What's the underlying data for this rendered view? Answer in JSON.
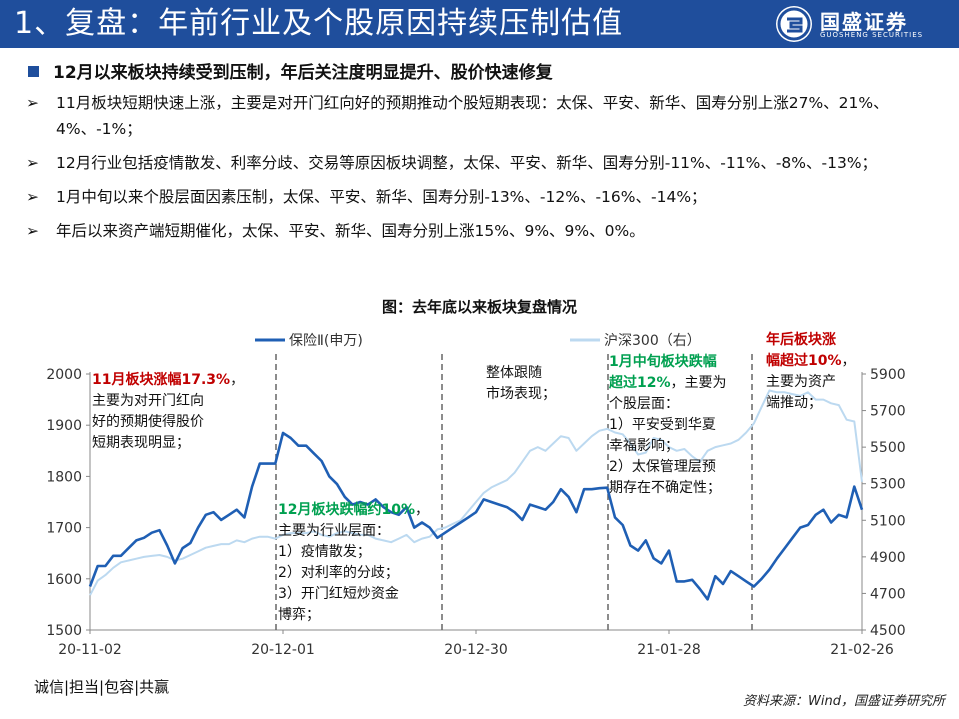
{
  "header": {
    "title": "1、复盘：年前行业及个股原因持续压制估值",
    "logo_cn": "国盛证券",
    "logo_en": "GUOSHENG SECURITIES"
  },
  "section_title": "12月以来板块持续受到压制，年后关注度明显提升、股价快速修复",
  "bullets": [
    "11月板块短期快速上涨，主要是对开门红向好的预期推动个股短期表现：太保、平安、新华、国寿分别上涨27%、21%、4%、-1%；",
    "12月行业包括疫情散发、利率分歧、交易等原因板块调整，太保、平安、新华、国寿分别-11%、-11%、-8%、-13%；",
    "1月中旬以来个股层面因素压制，太保、平安、新华、国寿分别-13%、-12%、-16%、-14%；",
    "年后以来资产端短期催化，太保、平安、新华、国寿分别上涨15%、9%、9%、0%。"
  ],
  "bullet_marker": "➢",
  "figure_title": "图：去年底以来板块复盘情况",
  "footer": {
    "slogan": "诚信|担当|包容|共赢",
    "source": "资料来源：Wind，国盛证券研究所"
  },
  "colors": {
    "header": "#1f4e9c",
    "series_left": "#1f5fb4",
    "series_right": "#bcd9f0",
    "red": "#c00000",
    "green": "#00a050"
  },
  "chart_data": {
    "type": "line",
    "x_tick_labels": [
      "20-11-02",
      "20-12-01",
      "20-12-30",
      "21-01-28",
      "21-02-26"
    ],
    "series": [
      {
        "name": "保险Ⅱ(申万)",
        "axis": "left",
        "values": [
          1585,
          1625,
          1625,
          1645,
          1645,
          1660,
          1675,
          1680,
          1690,
          1695,
          1665,
          1630,
          1660,
          1670,
          1700,
          1725,
          1730,
          1715,
          1725,
          1735,
          1720,
          1780,
          1825,
          1825,
          1825,
          1885,
          1875,
          1860,
          1860,
          1845,
          1830,
          1800,
          1785,
          1760,
          1745,
          1750,
          1745,
          1755,
          1740,
          1730,
          1725,
          1740,
          1700,
          1710,
          1700,
          1680,
          1690,
          1700,
          1710,
          1720,
          1730,
          1755,
          1750,
          1745,
          1740,
          1730,
          1715,
          1745,
          1740,
          1735,
          1750,
          1775,
          1760,
          1730,
          1775,
          1775,
          1777,
          1778,
          1720,
          1705,
          1665,
          1655,
          1675,
          1640,
          1630,
          1655,
          1595,
          1595,
          1598,
          1580,
          1560,
          1605,
          1590,
          1615,
          1605,
          1595,
          1585,
          1600,
          1618,
          1640,
          1660,
          1680,
          1700,
          1705,
          1725,
          1735,
          1710,
          1725,
          1720,
          1780,
          1735
        ]
      },
      {
        "name": "沪深300（右）",
        "axis": "right",
        "values": [
          4690,
          4770,
          4800,
          4840,
          4870,
          4880,
          4890,
          4900,
          4905,
          4910,
          4900,
          4880,
          4890,
          4910,
          4930,
          4950,
          4960,
          4970,
          4970,
          4990,
          4980,
          5000,
          5010,
          5010,
          5000,
          5020,
          5030,
          5030,
          5030,
          5040,
          5020,
          5010,
          5030,
          5040,
          5030,
          5020,
          5020,
          5000,
          4990,
          4980,
          5000,
          5020,
          4980,
          5000,
          5010,
          5050,
          5060,
          5080,
          5100,
          5150,
          5200,
          5250,
          5280,
          5300,
          5320,
          5360,
          5420,
          5480,
          5500,
          5480,
          5520,
          5560,
          5550,
          5480,
          5520,
          5560,
          5590,
          5600,
          5580,
          5570,
          5520,
          5460,
          5470,
          5550,
          5540,
          5500,
          5480,
          5490,
          5450,
          5420,
          5480,
          5500,
          5510,
          5520,
          5540,
          5580,
          5630,
          5720,
          5810,
          5800,
          5800,
          5790,
          5780,
          5800,
          5760,
          5760,
          5740,
          5730,
          5650,
          5640,
          5310
        ]
      }
    ],
    "y_left": {
      "min": 1500,
      "max": 2000,
      "ticks": [
        1500,
        1600,
        1700,
        1800,
        1900,
        2000
      ]
    },
    "y_right": {
      "min": 4500,
      "max": 5900,
      "ticks": [
        4500,
        4700,
        4900,
        5100,
        5300,
        5500,
        5700,
        5900
      ]
    },
    "legend_position": "top",
    "dashed_dividers": 5,
    "annotations": [
      {
        "lines": [
          {
            "parts": [
              {
                "t": "11月板块涨幅17.3%",
                "c": "red"
              },
              {
                "t": "，",
                "c": ""
              }
            ]
          },
          {
            "parts": [
              {
                "t": "主要为对开门红向",
                "c": ""
              }
            ]
          },
          {
            "parts": [
              {
                "t": "好的预期使得股价",
                "c": ""
              }
            ]
          },
          {
            "parts": [
              {
                "t": "短期表现明显；",
                "c": ""
              }
            ]
          }
        ]
      },
      {
        "lines": [
          {
            "parts": [
              {
                "t": "12月板块跌幅约10%",
                "c": "green"
              },
              {
                "t": "，",
                "c": ""
              }
            ]
          },
          {
            "parts": [
              {
                "t": "主要为行业层面：",
                "c": ""
              }
            ]
          },
          {
            "parts": [
              {
                "t": "1）疫情散发；",
                "c": ""
              }
            ]
          },
          {
            "parts": [
              {
                "t": "2）对利率的分歧；",
                "c": ""
              }
            ]
          },
          {
            "parts": [
              {
                "t": "3）开门红短炒资金",
                "c": ""
              }
            ]
          },
          {
            "parts": [
              {
                "t": "博弈；",
                "c": ""
              }
            ]
          }
        ]
      },
      {
        "lines": [
          {
            "parts": [
              {
                "t": "整体跟随",
                "c": ""
              }
            ]
          },
          {
            "parts": [
              {
                "t": "市场表现；",
                "c": ""
              }
            ]
          }
        ]
      },
      {
        "lines": [
          {
            "parts": [
              {
                "t": "1月中旬板块跌幅",
                "c": "green"
              }
            ]
          },
          {
            "parts": [
              {
                "t": "超过12%",
                "c": "green"
              },
              {
                "t": "，主要为",
                "c": ""
              }
            ]
          },
          {
            "parts": [
              {
                "t": "个股层面：",
                "c": ""
              }
            ]
          },
          {
            "parts": [
              {
                "t": "1）平安受到华夏",
                "c": ""
              }
            ]
          },
          {
            "parts": [
              {
                "t": "幸福影响；",
                "c": ""
              }
            ]
          },
          {
            "parts": [
              {
                "t": "2）太保管理层预",
                "c": ""
              }
            ]
          },
          {
            "parts": [
              {
                "t": "期存在不确定性；",
                "c": ""
              }
            ]
          }
        ]
      },
      {
        "lines": [
          {
            "parts": [
              {
                "t": "年后板块涨",
                "c": "red"
              }
            ]
          },
          {
            "parts": [
              {
                "t": "幅超过10%",
                "c": "red"
              },
              {
                "t": "，",
                "c": ""
              }
            ]
          },
          {
            "parts": [
              {
                "t": "主要为资产",
                "c": ""
              }
            ]
          },
          {
            "parts": [
              {
                "t": "端推动；",
                "c": ""
              }
            ]
          }
        ]
      }
    ]
  }
}
